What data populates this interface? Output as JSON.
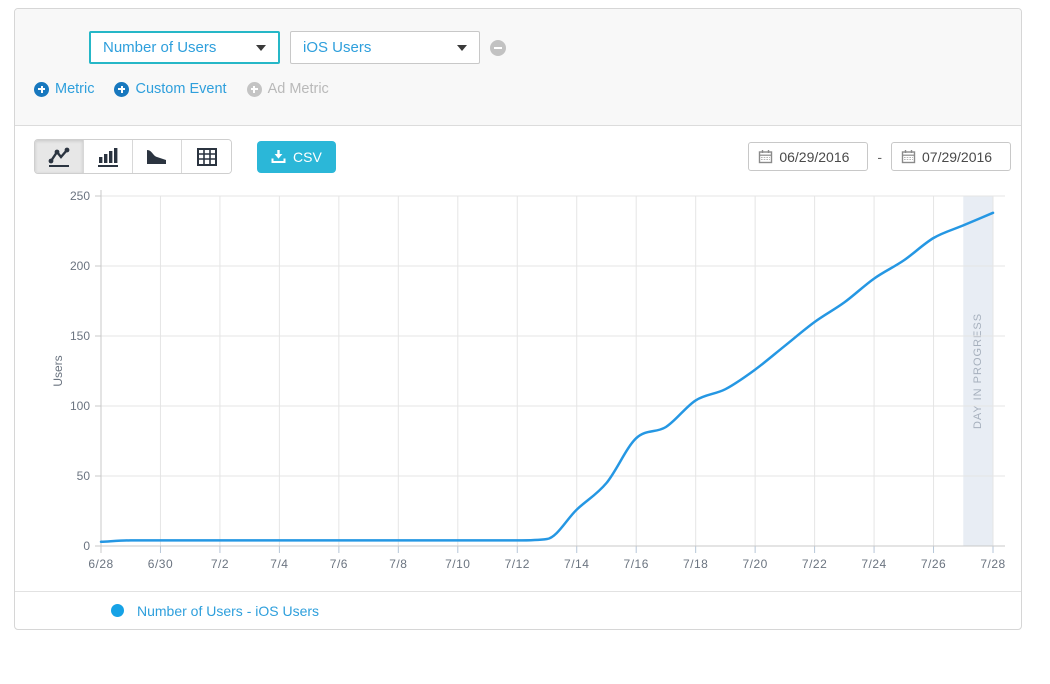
{
  "metrics_bar": {
    "metric_dropdown": {
      "value": "Number of Users"
    },
    "segment_dropdown": {
      "value": "iOS Users"
    },
    "add_links": [
      {
        "label": "Metric",
        "enabled": true
      },
      {
        "label": "Custom Event",
        "enabled": true
      },
      {
        "label": "Ad Metric",
        "enabled": false
      }
    ]
  },
  "toolbar": {
    "chart_types": [
      "line",
      "bar",
      "area",
      "table"
    ],
    "active_chart_type": "line",
    "csv_label": "CSV",
    "date_range": {
      "start": "06/29/2016",
      "separator": "-",
      "end": "07/29/2016"
    }
  },
  "chart_data": {
    "type": "line",
    "title": "",
    "xlabel": "",
    "ylabel": "Users",
    "ylim": [
      0,
      250
    ],
    "yticks": [
      0,
      50,
      100,
      150,
      200,
      250
    ],
    "grid": true,
    "legend_position": "bottom",
    "x": [
      "6/28",
      "6/29",
      "6/30",
      "7/1",
      "7/2",
      "7/3",
      "7/4",
      "7/5",
      "7/6",
      "7/7",
      "7/8",
      "7/9",
      "7/10",
      "7/11",
      "7/12",
      "7/13",
      "7/14",
      "7/15",
      "7/16",
      "7/17",
      "7/18",
      "7/19",
      "7/20",
      "7/21",
      "7/22",
      "7/23",
      "7/24",
      "7/25",
      "7/26",
      "7/27",
      "7/28"
    ],
    "xtick_every": 2,
    "series": [
      {
        "name": "Number of Users - iOS Users",
        "color": "#2597e3",
        "values": [
          3,
          4,
          4,
          4,
          4,
          4,
          4,
          4,
          4,
          4,
          4,
          4,
          4,
          4,
          4,
          5,
          26,
          45,
          77,
          85,
          104,
          112,
          126,
          143,
          160,
          174,
          191,
          204,
          220,
          229,
          238
        ]
      }
    ],
    "annotation_band": {
      "label": "DAY IN PROGRESS",
      "from": "7/27",
      "to": "7/28"
    }
  },
  "legend": {
    "label": "Number of Users - iOS Users",
    "dot_color": "#16a2e6"
  },
  "colors": {
    "line": "#2597e3",
    "grid": "#e5e5e5",
    "axis": "#c9c9c9",
    "xtick": "#b6c6d8",
    "tick_text": "#6b7480",
    "band_bg": "#e8edf4",
    "band_text": "#a6b0bd",
    "teal_accent": "#26b7c7",
    "csv_button": "#2bb7d8",
    "blue_text": "#2e9fdc"
  }
}
